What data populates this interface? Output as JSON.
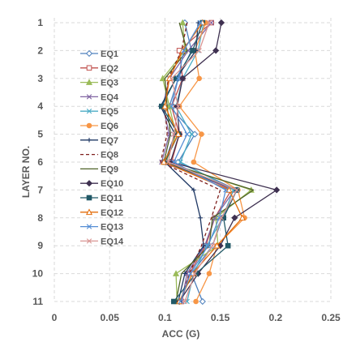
{
  "chart_data": {
    "type": "line",
    "title": "",
    "xlabel": "ACC (G)",
    "ylabel": "LAYER NO.",
    "xlim": [
      0,
      0.25
    ],
    "ylim": [
      1,
      11
    ],
    "y_reversed": true,
    "grid": true,
    "legend_position": "left",
    "x_ticks": [
      "0",
      "0.05",
      "0.1",
      "0.15",
      "0.2",
      "0.25"
    ],
    "y_ticks": [
      "1",
      "2",
      "3",
      "4",
      "5",
      "6",
      "7",
      "8",
      "9",
      "10",
      "11"
    ],
    "layers": [
      1,
      2,
      3,
      4,
      5,
      6,
      7,
      8,
      9,
      10,
      11
    ],
    "series": [
      {
        "name": "EQ1",
        "color": "#4f81bd",
        "marker": "diamond-open",
        "dash": "",
        "values": [
          0.118,
          0.124,
          0.112,
          0.104,
          0.127,
          0.112,
          0.165,
          0.152,
          0.143,
          0.124,
          0.134
        ]
      },
      {
        "name": "EQ2",
        "color": "#c0504d",
        "marker": "square-open",
        "dash": "",
        "values": [
          0.142,
          0.113,
          0.116,
          0.106,
          0.113,
          0.106,
          0.16,
          0.145,
          0.137,
          0.122,
          0.115
        ]
      },
      {
        "name": "EQ3",
        "color": "#9bbb59",
        "marker": "triangle",
        "dash": "",
        "values": [
          0.116,
          0.118,
          0.098,
          0.104,
          0.11,
          0.101,
          0.178,
          0.146,
          0.148,
          0.11,
          0.111
        ]
      },
      {
        "name": "EQ4",
        "color": "#8064a2",
        "marker": "x",
        "dash": "",
        "values": [
          0.142,
          0.121,
          0.104,
          0.098,
          0.104,
          0.097,
          0.163,
          0.145,
          0.136,
          0.12,
          0.115
        ]
      },
      {
        "name": "EQ5",
        "color": "#4bacc6",
        "marker": "x",
        "dash": "",
        "values": [
          0.135,
          0.13,
          0.116,
          0.11,
          0.124,
          0.114,
          0.162,
          0.152,
          0.138,
          0.126,
          0.12
        ]
      },
      {
        "name": "EQ6",
        "color": "#f79646",
        "marker": "circle",
        "dash": "",
        "values": [
          0.137,
          0.127,
          0.131,
          0.113,
          0.133,
          0.126,
          0.166,
          0.172,
          0.147,
          0.14,
          0.128
        ]
      },
      {
        "name": "EQ7",
        "color": "#1f3864",
        "marker": "plus",
        "dash": "",
        "values": [
          0.13,
          0.128,
          0.11,
          0.096,
          0.109,
          0.1,
          0.126,
          0.132,
          0.135,
          0.118,
          0.112
        ]
      },
      {
        "name": "EQ8",
        "color": "#7f1f1c",
        "marker": "none",
        "dash": "4 3",
        "values": [
          0.12,
          0.115,
          0.103,
          0.1,
          0.102,
          0.096,
          0.15,
          0.142,
          0.133,
          0.122,
          0.114
        ]
      },
      {
        "name": "EQ9",
        "color": "#4f6228",
        "marker": "none",
        "dash": "",
        "values": [
          0.113,
          0.12,
          0.1,
          0.102,
          0.105,
          0.099,
          0.18,
          0.143,
          0.14,
          0.115,
          0.11
        ]
      },
      {
        "name": "EQ10",
        "color": "#3f3151",
        "marker": "diamond",
        "dash": "",
        "values": [
          0.151,
          0.146,
          0.116,
          0.111,
          0.113,
          0.105,
          0.201,
          0.163,
          0.15,
          0.13,
          0.113
        ]
      },
      {
        "name": "EQ11",
        "color": "#215967",
        "marker": "square",
        "dash": "",
        "values": [
          0.134,
          0.125,
          0.11,
          0.097,
          0.112,
          0.1,
          0.165,
          0.153,
          0.157,
          0.128,
          0.108
        ]
      },
      {
        "name": "EQ12",
        "color": "#e36c09",
        "marker": "triangle-open",
        "dash": "",
        "values": [
          0.134,
          0.116,
          0.104,
          0.1,
          0.112,
          0.099,
          0.158,
          0.17,
          0.147,
          0.125,
          0.113
        ]
      },
      {
        "name": "EQ13",
        "color": "#558ed5",
        "marker": "x",
        "dash": "",
        "values": [
          0.132,
          0.117,
          0.112,
          0.106,
          0.12,
          0.108,
          0.155,
          0.149,
          0.139,
          0.123,
          0.114
        ]
      },
      {
        "name": "EQ14",
        "color": "#d99694",
        "marker": "x",
        "dash": "",
        "values": [
          0.14,
          0.131,
          0.106,
          0.112,
          0.108,
          0.103,
          0.165,
          0.151,
          0.143,
          0.127,
          0.118
        ]
      }
    ]
  }
}
